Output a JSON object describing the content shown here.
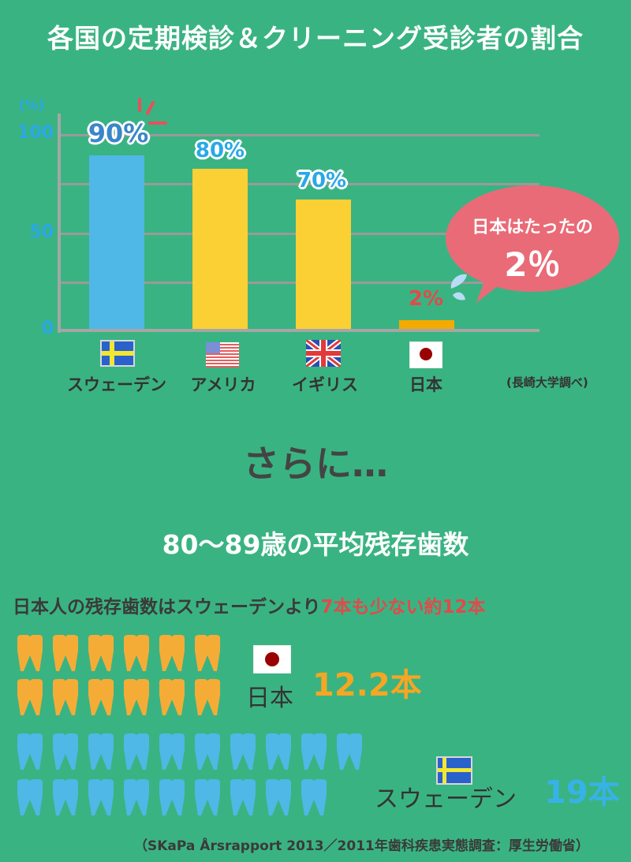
{
  "title": "各国の定期検診＆クリーニング受診者の割合",
  "chart_data": {
    "type": "bar",
    "title": "各国の定期検診＆クリーニング受診者の割合",
    "ylabel": "(%)",
    "xlabel": "",
    "ylim": [
      0,
      100
    ],
    "yticks": [
      "100",
      "50",
      "0"
    ],
    "grid": true,
    "categories": [
      "スウェーデン",
      "アメリカ",
      "イギリス",
      "日本"
    ],
    "values": [
      90,
      80,
      70,
      2
    ],
    "value_labels": [
      "90%",
      "80%",
      "70%",
      "2%"
    ],
    "bar_colors": [
      "#4fb8e6",
      "#fbd034",
      "#fbd034",
      "#f4aa00"
    ],
    "source": "(長崎大学調べ)",
    "annotation": {
      "line1": "日本はたったの",
      "line2": "2％"
    }
  },
  "chart2_data": {
    "type": "pictogram",
    "title": "80〜89歳の平均残存歯数",
    "categories": [
      "日本",
      "スウェーデン"
    ],
    "values": [
      12.2,
      19
    ],
    "value_labels": [
      "12.2本",
      "19本"
    ],
    "tooth_counts": [
      12,
      19
    ],
    "colors": [
      "#f5ac36",
      "#4fb8e6"
    ]
  },
  "sarani": "さらに…",
  "compare": {
    "prefix": "日本人の残存歯数はスウェーデンより",
    "highlight": "7本も少ない約12本"
  },
  "source2": "（SKaPa Årsrapport 2013／2011年歯科疾患実態調査：厚生労働省）"
}
